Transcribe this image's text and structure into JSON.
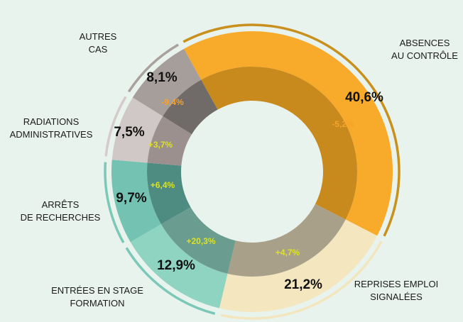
{
  "chart_data": {
    "type": "donut",
    "categories": [
      "ABSENCES\nAU CONTRÔLE",
      "REPRISES EMPLOI\nSIGNALÉES",
      "ENTRÉES EN STAGE\nFORMATION",
      "ARRÊTS\nDE RECHERCHES",
      "RADIATIONS\nADMINISTRATIVES",
      "AUTRES\nCAS"
    ],
    "values": [
      40.6,
      21.2,
      12.9,
      9.7,
      7.5,
      8.1
    ],
    "value_labels": [
      "40,6%",
      "21,2%",
      "12,9%",
      "9,7%",
      "7,5%",
      "8,1%"
    ],
    "changes": [
      -5.2,
      4.7,
      20.3,
      6.4,
      3.7,
      -9.4
    ],
    "change_labels": [
      "-5,2%",
      "+4,7%",
      "+20,3%",
      "+6,4%",
      "+3,7%",
      "-9,4%"
    ],
    "colors": [
      "#f8aa2a",
      "#f4e7c0",
      "#8fd4c1",
      "#73c2b2",
      "#d0c8c6",
      "#a59e9a"
    ],
    "inner_colors": [
      "#c98a1d",
      "#a9a089",
      "#6b9c90",
      "#4e8b81",
      "#9b908e",
      "#706a68"
    ],
    "arc_colors": [
      "#c8901c",
      "#f3e6bf",
      "#7cc8b8",
      "#7cc8b8",
      "#d3cccb",
      "#a8a19e"
    ],
    "change_colors": [
      "#f5a32d",
      "#dce31f",
      "#dce31f",
      "#dce31f",
      "#dce31f",
      "#f5a32d"
    ]
  }
}
